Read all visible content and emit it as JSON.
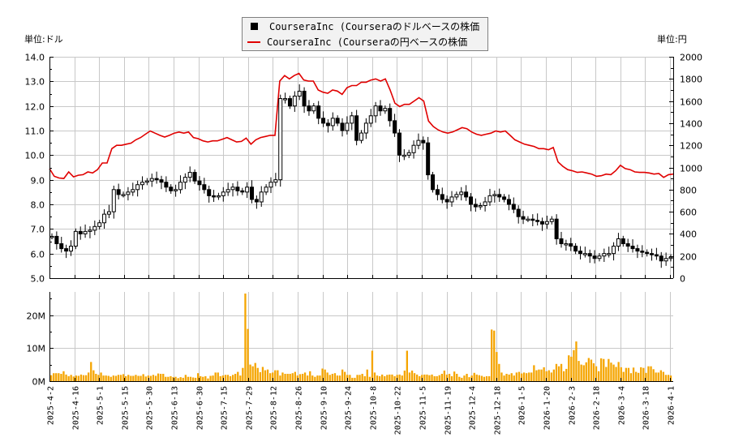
{
  "legend": {
    "items": [
      {
        "label": "CourseraInc (Courseraのドルベースの株価",
        "swatch": "box",
        "color": "#000000"
      },
      {
        "label": "CourseraInc (Courseraの円ベースの株価",
        "swatch": "line",
        "color": "#e00000"
      }
    ]
  },
  "axes": {
    "left_unit": "単位:ドル",
    "right_unit": "単位:円"
  },
  "colors": {
    "candle": "#000000",
    "yen_line": "#e00000",
    "volume_bar": "#f5a500",
    "grid": "#c8c8c8",
    "axis": "#000000"
  },
  "chart_data": [
    {
      "type": "candlestick",
      "title": "",
      "ylabel": "単位:ドル",
      "ylim": [
        5.0,
        14.0
      ],
      "yticks": [
        "5.0",
        "6.0",
        "7.0",
        "8.0",
        "9.0",
        "10.0",
        "11.0",
        "12.0",
        "13.0",
        "14.0"
      ],
      "secondary_y": {
        "ylabel": "単位:円",
        "ylim": [
          0,
          2000
        ],
        "yticks": [
          "0",
          "200",
          "400",
          "600",
          "800",
          "1000",
          "1200",
          "1400",
          "1600",
          "1800",
          "2000"
        ]
      },
      "x_ticks": [
        "2025-4-2",
        "2025-4-16",
        "2025-5-1",
        "2025-5-15",
        "2025-5-30",
        "2025-6-13",
        "2025-6-30",
        "2025-7-15",
        "2025-7-29",
        "2025-8-12",
        "2025-8-26",
        "2025-9-10",
        "2025-9-24",
        "2025-10-8",
        "2025-10-22",
        "2025-11-5",
        "2025-11-19",
        "2025-12-4",
        "2025-12-18",
        "2026-1-5",
        "2026-1-20",
        "2026-2-3",
        "2026-2-18",
        "2026-3-4",
        "2026-3-18",
        "2026-4-1"
      ],
      "series": [
        {
          "name": "CourseraInc (Courseraのドルベースの株価",
          "axis": "left",
          "close_approx": [
            6.7,
            6.4,
            6.2,
            6.1,
            6.3,
            6.9,
            6.8,
            6.9,
            6.95,
            7.1,
            7.25,
            7.6,
            7.7,
            8.6,
            8.4,
            8.4,
            8.5,
            8.6,
            8.8,
            8.9,
            8.95,
            9.05,
            9.0,
            8.9,
            8.7,
            8.55,
            8.6,
            8.9,
            9.1,
            9.3,
            8.95,
            8.8,
            8.6,
            8.35,
            8.3,
            8.35,
            8.5,
            8.6,
            8.7,
            8.55,
            8.5,
            8.7,
            8.2,
            8.1,
            8.5,
            8.7,
            8.9,
            9.0,
            12.3,
            12.3,
            12.0,
            12.4,
            12.6,
            12.0,
            11.8,
            12.0,
            11.5,
            11.3,
            11.2,
            11.5,
            11.3,
            11.0,
            11.3,
            11.6,
            10.6,
            10.9,
            11.3,
            11.6,
            12.0,
            11.8,
            11.9,
            11.4,
            10.9,
            10.0,
            10.0,
            10.1,
            10.4,
            10.6,
            10.5,
            9.2,
            8.6,
            8.4,
            8.2,
            8.1,
            8.3,
            8.4,
            8.5,
            8.3,
            8.0,
            7.9,
            7.95,
            8.1,
            8.35,
            8.4,
            8.3,
            8.2,
            8.0,
            7.8,
            7.5,
            7.4,
            7.4,
            7.35,
            7.3,
            7.2,
            7.3,
            7.4,
            6.6,
            6.4,
            6.4,
            6.3,
            6.1,
            6.0,
            6.0,
            5.9,
            5.8,
            5.9,
            6.0,
            6.0,
            6.3,
            6.6,
            6.4,
            6.3,
            6.2,
            6.1,
            6.05,
            6.0,
            5.95,
            5.9,
            5.7,
            5.8,
            5.85
          ]
        },
        {
          "name": "CourseraInc (Courseraの円ベースの株価",
          "axis": "right",
          "values_approx": [
            990,
            920,
            905,
            900,
            960,
            915,
            930,
            935,
            960,
            950,
            980,
            1040,
            1040,
            1170,
            1200,
            1200,
            1210,
            1220,
            1250,
            1270,
            1300,
            1330,
            1310,
            1290,
            1275,
            1290,
            1310,
            1320,
            1310,
            1320,
            1270,
            1260,
            1240,
            1230,
            1240,
            1240,
            1255,
            1270,
            1250,
            1230,
            1235,
            1265,
            1210,
            1250,
            1270,
            1280,
            1290,
            1290,
            1780,
            1830,
            1800,
            1830,
            1850,
            1790,
            1780,
            1780,
            1700,
            1680,
            1670,
            1700,
            1690,
            1660,
            1720,
            1740,
            1740,
            1770,
            1770,
            1790,
            1800,
            1780,
            1800,
            1700,
            1580,
            1550,
            1570,
            1570,
            1600,
            1630,
            1600,
            1420,
            1370,
            1340,
            1320,
            1310,
            1320,
            1340,
            1360,
            1350,
            1320,
            1300,
            1290,
            1300,
            1310,
            1330,
            1320,
            1330,
            1290,
            1250,
            1230,
            1210,
            1200,
            1190,
            1170,
            1170,
            1160,
            1180,
            1050,
            1010,
            980,
            970,
            955,
            960,
            950,
            940,
            920,
            925,
            940,
            935,
            970,
            1020,
            990,
            980,
            960,
            955,
            955,
            950,
            940,
            945,
            910,
            935,
            940
          ]
        }
      ]
    },
    {
      "type": "bar",
      "title": "",
      "ylabel": "",
      "ylim": [
        0,
        27000000
      ],
      "yticks": [
        "0M",
        "10M",
        "20M"
      ],
      "series": [
        {
          "name": "Volume",
          "values_millions_approx": [
            1.8,
            2.4,
            2.4,
            2.4,
            2.2,
            3.0,
            2.0,
            1.5,
            1.9,
            1.4,
            1.7,
            1.6,
            2.0,
            1.8,
            1.8,
            2.6,
            5.8,
            3.3,
            2.2,
            1.9,
            2.6,
            1.7,
            1.7,
            1.6,
            1.3,
            1.7,
            1.6,
            1.9,
            1.9,
            2.1,
            1.5,
            1.9,
            1.6,
            1.6,
            1.9,
            1.6,
            1.6,
            2.1,
            1.4,
            1.7,
            1.6,
            1.9,
            1.6,
            2.3,
            2.2,
            2.2,
            1.3,
            1.3,
            1.5,
            1.2,
            1.3,
            0.9,
            1.2,
            1.0,
            1.9,
            1.3,
            1.3,
            1.1,
            1.0,
            2.4,
            1.5,
            1.3,
            1.5,
            0.8,
            1.6,
            1.7,
            2.6,
            2.6,
            1.5,
            1.7,
            1.9,
            1.9,
            1.5,
            1.9,
            2.2,
            2.8,
            1.7,
            4.0,
            26.5,
            15.8,
            5.0,
            4.5,
            5.5,
            4.0,
            2.7,
            4.3,
            3.3,
            3.5,
            2.4,
            2.6,
            3.3,
            3.3,
            1.7,
            2.6,
            2.2,
            2.2,
            2.2,
            2.4,
            2.8,
            1.7,
            2.1,
            2.2,
            2.6,
            1.7,
            3.0,
            1.7,
            1.3,
            1.7,
            1.7,
            3.8,
            3.5,
            2.6,
            1.9,
            2.2,
            2.4,
            1.7,
            1.7,
            3.5,
            2.8,
            1.9,
            1.9,
            1.0,
            1.0,
            1.9,
            1.9,
            2.2,
            1.5,
            3.5,
            1.3,
            9.2,
            2.6,
            1.7,
            1.5,
            2.0,
            1.5,
            1.9,
            2.0,
            2.0,
            1.5,
            1.9,
            2.0,
            1.7,
            3.2,
            9.2,
            2.6,
            3.2,
            2.4,
            2.0,
            1.5,
            1.9,
            2.0,
            2.0,
            1.8,
            2.0,
            1.5,
            1.5,
            1.8,
            2.2,
            3.2,
            2.0,
            2.2,
            1.5,
            2.9,
            2.2,
            1.3,
            1.0,
            1.7,
            2.2,
            1.2,
            1.7,
            2.5,
            2.0,
            1.8,
            1.6,
            1.3,
            1.5,
            1.5,
            15.6,
            15.3,
            8.8,
            5.2,
            2.6,
            1.7,
            2.2,
            2.0,
            2.4,
            1.7,
            2.6,
            2.8,
            2.3,
            2.6,
            2.4,
            2.6,
            2.6,
            4.8,
            3.3,
            3.5,
            3.5,
            4.2,
            3.0,
            3.3,
            2.6,
            3.5,
            5.2,
            4.5,
            5.2,
            3.0,
            3.7,
            7.8,
            7.4,
            9.4,
            12.0,
            6.1,
            5.0,
            4.8,
            5.7,
            7.0,
            6.5,
            5.4,
            4.5,
            3.0,
            6.9,
            6.7,
            4.3,
            6.7,
            5.6,
            5.0,
            4.3,
            5.8,
            4.2,
            2.8,
            4.0,
            4.0,
            2.4,
            4.1,
            2.8,
            2.5,
            4.2,
            4.0,
            2.5,
            4.5,
            4.5,
            3.6,
            2.6,
            2.6,
            3.3,
            2.8,
            1.9,
            1.9,
            1.7
          ]
        }
      ]
    }
  ]
}
